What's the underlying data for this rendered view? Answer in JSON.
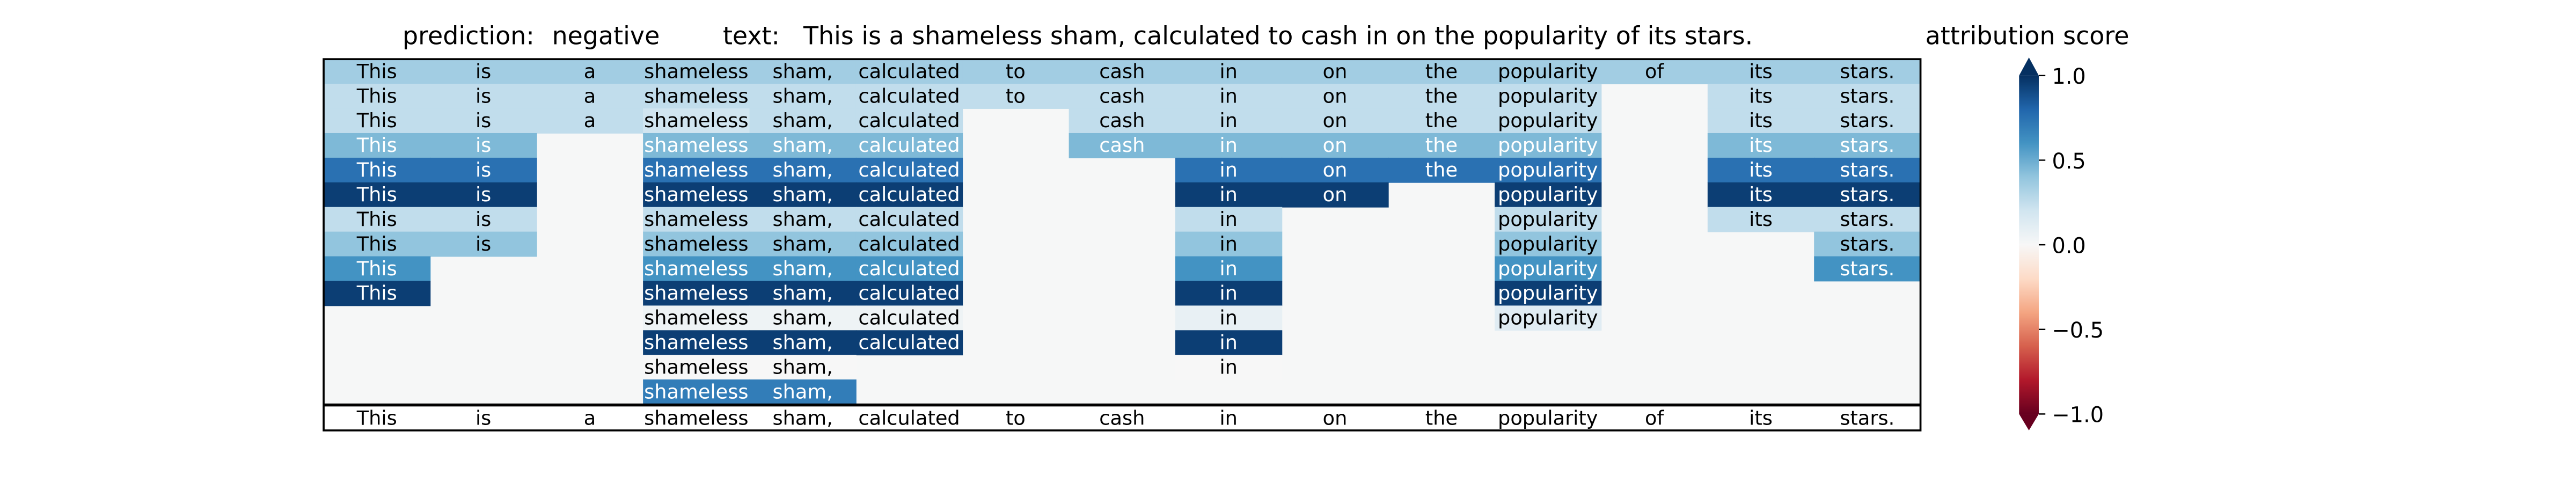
{
  "header": {
    "prediction_label": "prediction:",
    "prediction_value": "negative",
    "text_label": "text:",
    "text_value": "This is a shameless sham, calculated to cash in on the popularity of its stars."
  },
  "colorbar": {
    "title": "attribution score",
    "ticks": [
      1.0,
      0.5,
      0.0,
      -0.5,
      -1.0
    ],
    "tick_labels": [
      "1.0",
      "0.5",
      "0.0",
      "−0.5",
      "−1.0"
    ]
  },
  "chart_data": {
    "type": "heatmap",
    "colormap": "RdBu",
    "value_range": [
      -1.0,
      1.0
    ],
    "tokens": [
      "This",
      "is",
      "a",
      "shameless",
      "sham,",
      "calculated",
      "to",
      "cash",
      "in",
      "on",
      "the",
      "popularity",
      "of",
      "its",
      "stars."
    ],
    "rows": [
      [
        0.35,
        0.35,
        0.35,
        0.35,
        0.35,
        0.35,
        0.35,
        0.35,
        0.35,
        0.35,
        0.35,
        0.35,
        0.35,
        0.35,
        0.35
      ],
      [
        0.25,
        0.25,
        0.25,
        0.25,
        0.25,
        0.25,
        0.25,
        0.25,
        0.25,
        0.25,
        0.25,
        0.25,
        null,
        0.25,
        0.25
      ],
      [
        0.25,
        0.25,
        0.25,
        0.2,
        0.25,
        0.25,
        null,
        0.25,
        0.25,
        0.25,
        0.25,
        0.25,
        null,
        0.25,
        0.25
      ],
      [
        0.45,
        0.45,
        null,
        0.45,
        0.45,
        0.45,
        null,
        0.45,
        0.45,
        0.45,
        0.45,
        0.45,
        null,
        0.45,
        0.45
      ],
      [
        0.75,
        0.75,
        null,
        0.75,
        0.75,
        0.75,
        null,
        null,
        0.75,
        0.75,
        0.75,
        0.75,
        null,
        0.75,
        0.75
      ],
      [
        0.95,
        0.95,
        null,
        0.95,
        0.95,
        0.95,
        null,
        null,
        0.95,
        0.95,
        null,
        0.95,
        null,
        0.95,
        0.95
      ],
      [
        0.25,
        0.25,
        null,
        0.25,
        0.25,
        0.25,
        null,
        null,
        0.25,
        null,
        null,
        0.25,
        null,
        0.25,
        0.25
      ],
      [
        0.4,
        0.4,
        null,
        0.4,
        0.4,
        0.4,
        null,
        null,
        0.4,
        null,
        null,
        0.4,
        null,
        null,
        0.4
      ],
      [
        0.6,
        null,
        null,
        0.6,
        0.6,
        0.6,
        null,
        null,
        0.6,
        null,
        null,
        0.6,
        null,
        null,
        0.6
      ],
      [
        0.95,
        null,
        null,
        0.95,
        0.95,
        0.95,
        null,
        null,
        0.95,
        null,
        null,
        0.95,
        null,
        null,
        null
      ],
      [
        null,
        null,
        null,
        0.05,
        0.05,
        0.05,
        null,
        null,
        0.08,
        null,
        null,
        0.12,
        null,
        null,
        null
      ],
      [
        null,
        null,
        null,
        0.95,
        0.95,
        0.95,
        null,
        null,
        0.95,
        null,
        null,
        null,
        null,
        null,
        null
      ],
      [
        null,
        null,
        null,
        0.0,
        0.0,
        null,
        null,
        null,
        0.0,
        null,
        null,
        null,
        null,
        null,
        null
      ],
      [
        null,
        null,
        null,
        0.7,
        0.7,
        null,
        null,
        null,
        null,
        null,
        null,
        null,
        null,
        null,
        null
      ]
    ],
    "bottom_row": [
      "This",
      "is",
      "a",
      "shameless",
      "sham,",
      "calculated",
      "to",
      "cash",
      "in",
      "on",
      "the",
      "popularity",
      "of",
      "its",
      "stars."
    ]
  }
}
